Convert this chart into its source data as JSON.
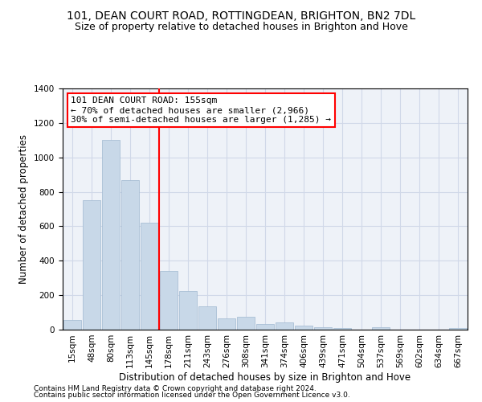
{
  "title1": "101, DEAN COURT ROAD, ROTTINGDEAN, BRIGHTON, BN2 7DL",
  "title2": "Size of property relative to detached houses in Brighton and Hove",
  "xlabel": "Distribution of detached houses by size in Brighton and Hove",
  "ylabel": "Number of detached properties",
  "footer1": "Contains HM Land Registry data © Crown copyright and database right 2024.",
  "footer2": "Contains public sector information licensed under the Open Government Licence v3.0.",
  "categories": [
    "15sqm",
    "48sqm",
    "80sqm",
    "113sqm",
    "145sqm",
    "178sqm",
    "211sqm",
    "243sqm",
    "276sqm",
    "308sqm",
    "341sqm",
    "374sqm",
    "406sqm",
    "439sqm",
    "471sqm",
    "504sqm",
    "537sqm",
    "569sqm",
    "602sqm",
    "634sqm",
    "667sqm"
  ],
  "values": [
    55,
    750,
    1100,
    870,
    620,
    340,
    225,
    135,
    65,
    75,
    35,
    40,
    22,
    15,
    10,
    0,
    12,
    0,
    0,
    0,
    10
  ],
  "bar_color": "#c8d8e8",
  "bar_edge_color": "#a0b8d0",
  "vline_x": 4.5,
  "vline_color": "red",
  "annotation_text": "101 DEAN COURT ROAD: 155sqm\n← 70% of detached houses are smaller (2,966)\n30% of semi-detached houses are larger (1,285) →",
  "box_color": "red",
  "ylim": [
    0,
    1400
  ],
  "yticks": [
    0,
    200,
    400,
    600,
    800,
    1000,
    1200,
    1400
  ],
  "grid_color": "#d0d8e8",
  "background_color": "#eef2f8",
  "title1_fontsize": 10,
  "title2_fontsize": 9,
  "xlabel_fontsize": 8.5,
  "ylabel_fontsize": 8.5,
  "tick_fontsize": 7.5,
  "annotation_fontsize": 8,
  "footer_fontsize": 6.5
}
